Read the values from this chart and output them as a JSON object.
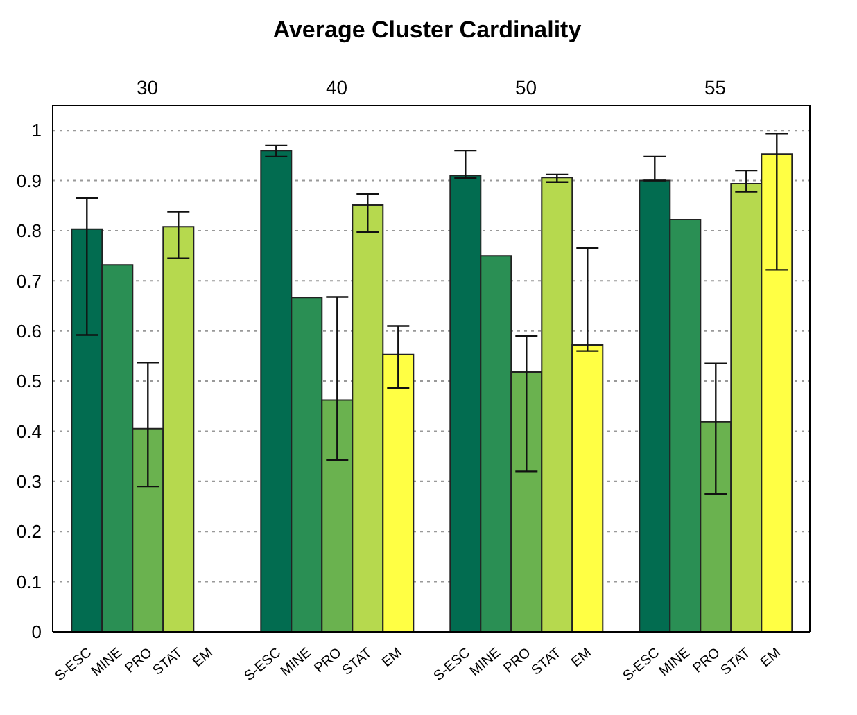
{
  "chart_data": {
    "type": "bar",
    "title": "Average Cluster Cardinality",
    "categories": [
      "30",
      "40",
      "50",
      "55"
    ],
    "series": [
      {
        "name": "S-ESC",
        "color": "#026c50",
        "values": [
          0.803,
          0.96,
          0.91,
          0.9
        ],
        "errors": [
          [
            0.592,
            0.865
          ],
          [
            0.948,
            0.97
          ],
          [
            0.905,
            0.96
          ],
          [
            0.9,
            0.948
          ]
        ]
      },
      {
        "name": "MINE",
        "color": "#2a8f54",
        "values": [
          0.732,
          0.667,
          0.75,
          0.822
        ],
        "errors": [
          null,
          null,
          null,
          null
        ]
      },
      {
        "name": "PRO",
        "color": "#6ab24f",
        "values": [
          0.405,
          0.462,
          0.518,
          0.419
        ],
        "errors": [
          [
            0.29,
            0.537
          ],
          [
            0.343,
            0.668
          ],
          [
            0.32,
            0.59
          ],
          [
            0.275,
            0.535
          ]
        ]
      },
      {
        "name": "STAT",
        "color": "#b6d94e",
        "values": [
          0.808,
          0.851,
          0.906,
          0.894
        ],
        "errors": [
          [
            0.745,
            0.838
          ],
          [
            0.797,
            0.873
          ],
          [
            0.897,
            0.912
          ],
          [
            0.878,
            0.92
          ]
        ]
      },
      {
        "name": "EM",
        "color": "#ffff44",
        "values": [
          null,
          0.553,
          0.572,
          0.953
        ],
        "errors": [
          null,
          [
            0.486,
            0.61
          ],
          [
            0.56,
            0.765
          ],
          [
            0.722,
            0.993
          ]
        ]
      }
    ],
    "ylim": [
      0,
      1.05
    ],
    "yticks": [
      0,
      0.1,
      0.2,
      0.3,
      0.4,
      0.5,
      0.6,
      0.7,
      0.8,
      0.9,
      1
    ],
    "grid": "y",
    "legend": false
  }
}
